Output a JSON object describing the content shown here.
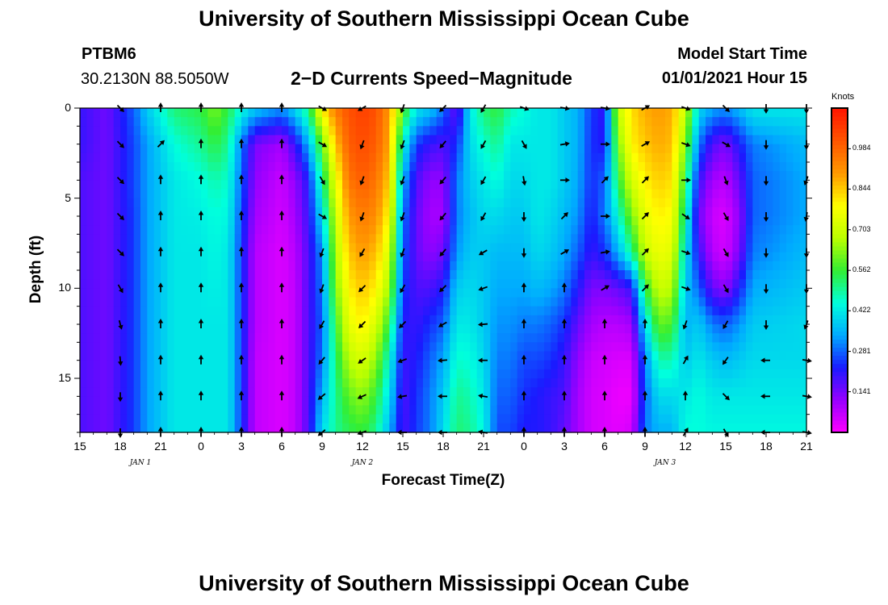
{
  "header": {
    "title_top": "University of Southern Mississippi Ocean Cube",
    "title_bottom": "University of Southern Mississippi Ocean Cube",
    "station_id": "PTBM6",
    "station_coords": "30.2130N 88.5050W",
    "plot_title": "2−D Currents Speed−Magnitude",
    "model_start_label": "Model Start Time",
    "model_start_value": "01/01/2021 Hour 15"
  },
  "colors": {
    "speed_ramp": [
      "#ff00ff",
      "#9900ff",
      "#1a1aff",
      "#00aaff",
      "#00ffdd",
      "#33ee33",
      "#bbff00",
      "#ffff00",
      "#ff9900",
      "#ff5500",
      "#ff1500"
    ]
  },
  "chart_data": {
    "type": "heatmap",
    "title": "2−D Currents Speed−Magnitude",
    "xlabel": "Forecast Time(Z)",
    "ylabel": "Depth (ft)",
    "x_hours": [
      0,
      54
    ],
    "xtick_hours": [
      0,
      3,
      6,
      9,
      12,
      15,
      18,
      21,
      24,
      27,
      30,
      33,
      36,
      39,
      42,
      45,
      48,
      51,
      54
    ],
    "xtick_labels": [
      "15",
      "18",
      "21",
      "0",
      "3",
      "6",
      "9",
      "12",
      "15",
      "18",
      "21",
      "0",
      "3",
      "6",
      "9",
      "12",
      "15",
      "18",
      "21"
    ],
    "date_labels": [
      {
        "hour": 4.5,
        "text": "JAN 1"
      },
      {
        "hour": 21,
        "text": "JAN 2"
      },
      {
        "hour": 43.5,
        "text": "JAN 3"
      }
    ],
    "ylim": [
      0,
      18
    ],
    "ytick_values": [
      0,
      5,
      10,
      15
    ],
    "ytick_labels": [
      "0",
      "5",
      "10",
      "15"
    ],
    "colorbar": {
      "label": "Knots",
      "range": [
        0,
        1.125
      ],
      "tick_values": [
        0.141,
        0.281,
        0.422,
        0.562,
        0.703,
        0.844,
        0.984
      ],
      "tick_labels": [
        "0.141",
        "0.281",
        "0.422",
        "0.562",
        "0.703",
        "0.844",
        "0.984"
      ]
    },
    "depth_samples_ft": [
      0,
      2,
      4,
      6,
      8,
      10,
      12,
      14,
      16,
      18
    ],
    "speed_columns": [
      {
        "hour": 0,
        "speeds": [
          0.2,
          0.2,
          0.18,
          0.18,
          0.18,
          0.18,
          0.18,
          0.18,
          0.18,
          0.18
        ]
      },
      {
        "hour": 2,
        "speeds": [
          0.15,
          0.15,
          0.15,
          0.15,
          0.15,
          0.15,
          0.15,
          0.15,
          0.15,
          0.15
        ]
      },
      {
        "hour": 4,
        "speeds": [
          0.28,
          0.26,
          0.26,
          0.25,
          0.25,
          0.25,
          0.25,
          0.25,
          0.25,
          0.25
        ]
      },
      {
        "hour": 5,
        "speeds": [
          0.38,
          0.33,
          0.33,
          0.33,
          0.33,
          0.33,
          0.33,
          0.33,
          0.33,
          0.33
        ]
      },
      {
        "hour": 7,
        "speeds": [
          0.52,
          0.45,
          0.42,
          0.42,
          0.42,
          0.42,
          0.42,
          0.42,
          0.42,
          0.42
        ]
      },
      {
        "hour": 9,
        "speeds": [
          0.55,
          0.5,
          0.45,
          0.43,
          0.42,
          0.42,
          0.42,
          0.42,
          0.42,
          0.42
        ]
      },
      {
        "hour": 10,
        "speeds": [
          0.62,
          0.55,
          0.48,
          0.45,
          0.44,
          0.43,
          0.42,
          0.42,
          0.42,
          0.42
        ]
      },
      {
        "hour": 11,
        "speeds": [
          0.55,
          0.5,
          0.46,
          0.44,
          0.42,
          0.42,
          0.42,
          0.42,
          0.42,
          0.42
        ]
      },
      {
        "hour": 12,
        "speeds": [
          0.45,
          0.3,
          0.28,
          0.26,
          0.25,
          0.25,
          0.25,
          0.25,
          0.25,
          0.25
        ]
      },
      {
        "hour": 13,
        "speeds": [
          0.38,
          0.14,
          0.12,
          0.1,
          0.08,
          0.08,
          0.08,
          0.07,
          0.07,
          0.07
        ]
      },
      {
        "hour": 15,
        "speeds": [
          0.32,
          0.1,
          0.06,
          0.05,
          0.04,
          0.04,
          0.04,
          0.04,
          0.04,
          0.04
        ]
      },
      {
        "hour": 16,
        "speeds": [
          0.4,
          0.2,
          0.12,
          0.1,
          0.08,
          0.07,
          0.07,
          0.07,
          0.07,
          0.07
        ]
      },
      {
        "hour": 17,
        "speeds": [
          0.52,
          0.35,
          0.22,
          0.2,
          0.18,
          0.18,
          0.18,
          0.18,
          0.18,
          0.18
        ]
      },
      {
        "hour": 18,
        "speeds": [
          0.8,
          0.6,
          0.5,
          0.4,
          0.32,
          0.3,
          0.28,
          0.3,
          0.35,
          0.4
        ]
      },
      {
        "hour": 19,
        "speeds": [
          0.95,
          0.85,
          0.75,
          0.7,
          0.66,
          0.62,
          0.56,
          0.52,
          0.5,
          0.5
        ]
      },
      {
        "hour": 20,
        "speeds": [
          1.02,
          1.0,
          0.96,
          0.9,
          0.85,
          0.8,
          0.75,
          0.68,
          0.6,
          0.54
        ]
      },
      {
        "hour": 21,
        "speeds": [
          1.05,
          1.03,
          1.0,
          0.95,
          0.9,
          0.85,
          0.8,
          0.72,
          0.64,
          0.56
        ]
      },
      {
        "hour": 22,
        "speeds": [
          1.02,
          1.0,
          0.96,
          0.92,
          0.86,
          0.8,
          0.72,
          0.64,
          0.56,
          0.5
        ]
      },
      {
        "hour": 23,
        "speeds": [
          0.9,
          0.88,
          0.84,
          0.78,
          0.72,
          0.65,
          0.55,
          0.45,
          0.4,
          0.35
        ]
      },
      {
        "hour": 24,
        "speeds": [
          0.6,
          0.45,
          0.35,
          0.3,
          0.28,
          0.25,
          0.22,
          0.2,
          0.18,
          0.18
        ]
      },
      {
        "hour": 25,
        "speeds": [
          0.42,
          0.25,
          0.18,
          0.16,
          0.16,
          0.18,
          0.2,
          0.22,
          0.24,
          0.25
        ]
      },
      {
        "hour": 26,
        "speeds": [
          0.38,
          0.2,
          0.12,
          0.1,
          0.12,
          0.18,
          0.24,
          0.28,
          0.3,
          0.3
        ]
      },
      {
        "hour": 27,
        "speeds": [
          0.3,
          0.18,
          0.12,
          0.1,
          0.15,
          0.22,
          0.28,
          0.34,
          0.38,
          0.4
        ]
      },
      {
        "hour": 28,
        "speeds": [
          0.14,
          0.24,
          0.3,
          0.3,
          0.32,
          0.38,
          0.42,
          0.46,
          0.5,
          0.52
        ]
      },
      {
        "hour": 29,
        "speeds": [
          0.42,
          0.4,
          0.38,
          0.36,
          0.38,
          0.4,
          0.42,
          0.45,
          0.48,
          0.5
        ]
      },
      {
        "hour": 30,
        "speeds": [
          0.52,
          0.46,
          0.42,
          0.4,
          0.38,
          0.38,
          0.38,
          0.4,
          0.42,
          0.44
        ]
      },
      {
        "hour": 31,
        "speeds": [
          0.56,
          0.5,
          0.45,
          0.4,
          0.36,
          0.34,
          0.32,
          0.3,
          0.28,
          0.26
        ]
      },
      {
        "hour": 32,
        "speeds": [
          0.48,
          0.42,
          0.4,
          0.38,
          0.36,
          0.34,
          0.32,
          0.3,
          0.28,
          0.26
        ]
      },
      {
        "hour": 33,
        "speeds": [
          0.45,
          0.42,
          0.4,
          0.38,
          0.36,
          0.34,
          0.3,
          0.26,
          0.24,
          0.22
        ]
      },
      {
        "hour": 34,
        "speeds": [
          0.42,
          0.42,
          0.42,
          0.42,
          0.4,
          0.36,
          0.3,
          0.26,
          0.22,
          0.22
        ]
      },
      {
        "hour": 35,
        "speeds": [
          0.42,
          0.42,
          0.42,
          0.4,
          0.38,
          0.34,
          0.28,
          0.24,
          0.2,
          0.2
        ]
      },
      {
        "hour": 36,
        "speeds": [
          0.38,
          0.38,
          0.38,
          0.36,
          0.34,
          0.3,
          0.24,
          0.2,
          0.18,
          0.16
        ]
      },
      {
        "hour": 37,
        "speeds": [
          0.35,
          0.35,
          0.34,
          0.32,
          0.28,
          0.22,
          0.16,
          0.12,
          0.1,
          0.1
        ]
      },
      {
        "hour": 38,
        "speeds": [
          0.25,
          0.24,
          0.24,
          0.22,
          0.2,
          0.14,
          0.1,
          0.06,
          0.05,
          0.05
        ]
      },
      {
        "hour": 39,
        "speeds": [
          0.2,
          0.22,
          0.28,
          0.3,
          0.24,
          0.14,
          0.08,
          0.05,
          0.04,
          0.04
        ]
      },
      {
        "hour": 40,
        "speeds": [
          0.7,
          0.62,
          0.55,
          0.45,
          0.35,
          0.16,
          0.08,
          0.04,
          0.02,
          0.03
        ]
      },
      {
        "hour": 41,
        "speeds": [
          0.82,
          0.8,
          0.72,
          0.62,
          0.5,
          0.2,
          0.1,
          0.04,
          0.02,
          0.05
        ]
      },
      {
        "hour": 42,
        "speeds": [
          0.88,
          0.85,
          0.8,
          0.75,
          0.7,
          0.55,
          0.4,
          0.3,
          0.28,
          0.3
        ]
      },
      {
        "hour": 43,
        "speeds": [
          0.9,
          0.88,
          0.84,
          0.8,
          0.76,
          0.7,
          0.6,
          0.48,
          0.4,
          0.35
        ]
      },
      {
        "hour": 44,
        "speeds": [
          0.88,
          0.86,
          0.82,
          0.78,
          0.74,
          0.68,
          0.58,
          0.48,
          0.4,
          0.35
        ]
      },
      {
        "hour": 45,
        "speeds": [
          0.7,
          0.62,
          0.55,
          0.48,
          0.42,
          0.38,
          0.35,
          0.38,
          0.42,
          0.45
        ]
      },
      {
        "hour": 46,
        "speeds": [
          0.4,
          0.3,
          0.2,
          0.15,
          0.2,
          0.28,
          0.38,
          0.42,
          0.45,
          0.45
        ]
      },
      {
        "hour": 47,
        "speeds": [
          0.34,
          0.18,
          0.1,
          0.06,
          0.08,
          0.16,
          0.3,
          0.38,
          0.42,
          0.44
        ]
      },
      {
        "hour": 48,
        "speeds": [
          0.32,
          0.14,
          0.08,
          0.04,
          0.05,
          0.12,
          0.28,
          0.36,
          0.42,
          0.44
        ]
      },
      {
        "hour": 49,
        "speeds": [
          0.36,
          0.22,
          0.16,
          0.12,
          0.14,
          0.22,
          0.32,
          0.38,
          0.42,
          0.44
        ]
      },
      {
        "hour": 50,
        "speeds": [
          0.42,
          0.3,
          0.28,
          0.28,
          0.3,
          0.34,
          0.38,
          0.4,
          0.42,
          0.44
        ]
      },
      {
        "hour": 54,
        "speeds": [
          0.42,
          0.36,
          0.34,
          0.34,
          0.36,
          0.38,
          0.4,
          0.4,
          0.42,
          0.44
        ]
      }
    ],
    "vector_hours": [
      3,
      6,
      9,
      12,
      15,
      18,
      21,
      24,
      27,
      30,
      33,
      36,
      39,
      42,
      45,
      48,
      51,
      54
    ],
    "vector_depths_ft": [
      0,
      2,
      4,
      6,
      8,
      10,
      12,
      14,
      16,
      18
    ],
    "vector_directions_deg": [
      [
        135,
        135,
        135,
        135,
        135,
        150,
        165,
        175,
        180,
        180
      ],
      [
        0,
        45,
        0,
        0,
        0,
        0,
        0,
        0,
        0,
        0
      ],
      [
        0,
        0,
        0,
        0,
        0,
        0,
        0,
        0,
        0,
        0
      ],
      [
        0,
        0,
        0,
        0,
        0,
        0,
        0,
        0,
        0,
        0
      ],
      [
        0,
        0,
        0,
        0,
        0,
        0,
        0,
        0,
        0,
        0
      ],
      [
        120,
        120,
        150,
        120,
        200,
        200,
        210,
        220,
        230,
        230
      ],
      [
        240,
        200,
        200,
        200,
        210,
        225,
        225,
        235,
        245,
        250
      ],
      [
        200,
        200,
        200,
        200,
        200,
        210,
        225,
        250,
        260,
        270
      ],
      [
        225,
        220,
        220,
        220,
        220,
        225,
        240,
        265,
        270,
        270
      ],
      [
        210,
        210,
        210,
        210,
        240,
        250,
        265,
        270,
        280,
        280
      ],
      [
        110,
        150,
        170,
        180,
        180,
        0,
        0,
        0,
        0,
        0
      ],
      [
        100,
        80,
        90,
        45,
        60,
        0,
        0,
        0,
        0,
        0
      ],
      [
        100,
        90,
        45,
        90,
        80,
        60,
        0,
        0,
        0,
        0
      ],
      [
        60,
        60,
        45,
        45,
        45,
        45,
        0,
        0,
        0,
        0
      ],
      [
        110,
        110,
        90,
        125,
        110,
        110,
        200,
        30,
        0,
        30
      ],
      [
        135,
        120,
        160,
        150,
        150,
        150,
        210,
        215,
        135,
        150
      ],
      [
        180,
        180,
        180,
        180,
        180,
        180,
        180,
        270,
        270,
        270
      ],
      [
        180,
        180,
        200,
        190,
        180,
        180,
        200,
        100,
        100,
        100
      ]
    ]
  }
}
